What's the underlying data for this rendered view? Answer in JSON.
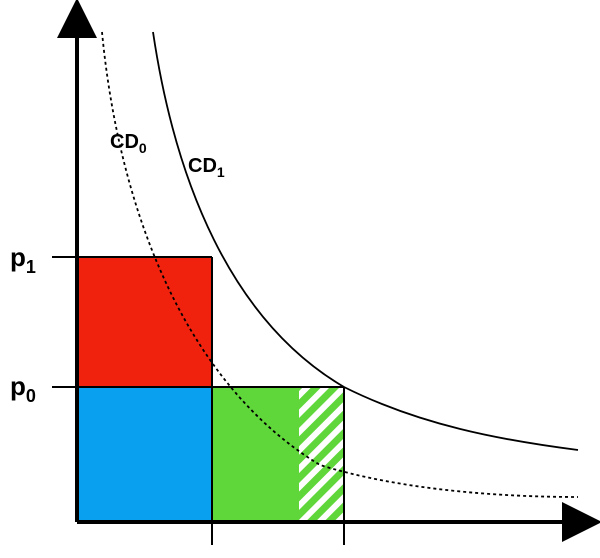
{
  "curves": [
    {
      "label": "CD",
      "subscript": "0",
      "style": "dashed"
    },
    {
      "label": "CD",
      "subscript": "1",
      "style": "solid"
    }
  ],
  "price_levels": [
    {
      "label": "p",
      "subscript": "1"
    },
    {
      "label": "p",
      "subscript": "0"
    }
  ],
  "colors": {
    "red_rect": "#f0220e",
    "blue_rect": "#0aa0f0",
    "green_rect": "#5fd63a",
    "hatch": "#5fd63a",
    "lines": "#000000"
  }
}
